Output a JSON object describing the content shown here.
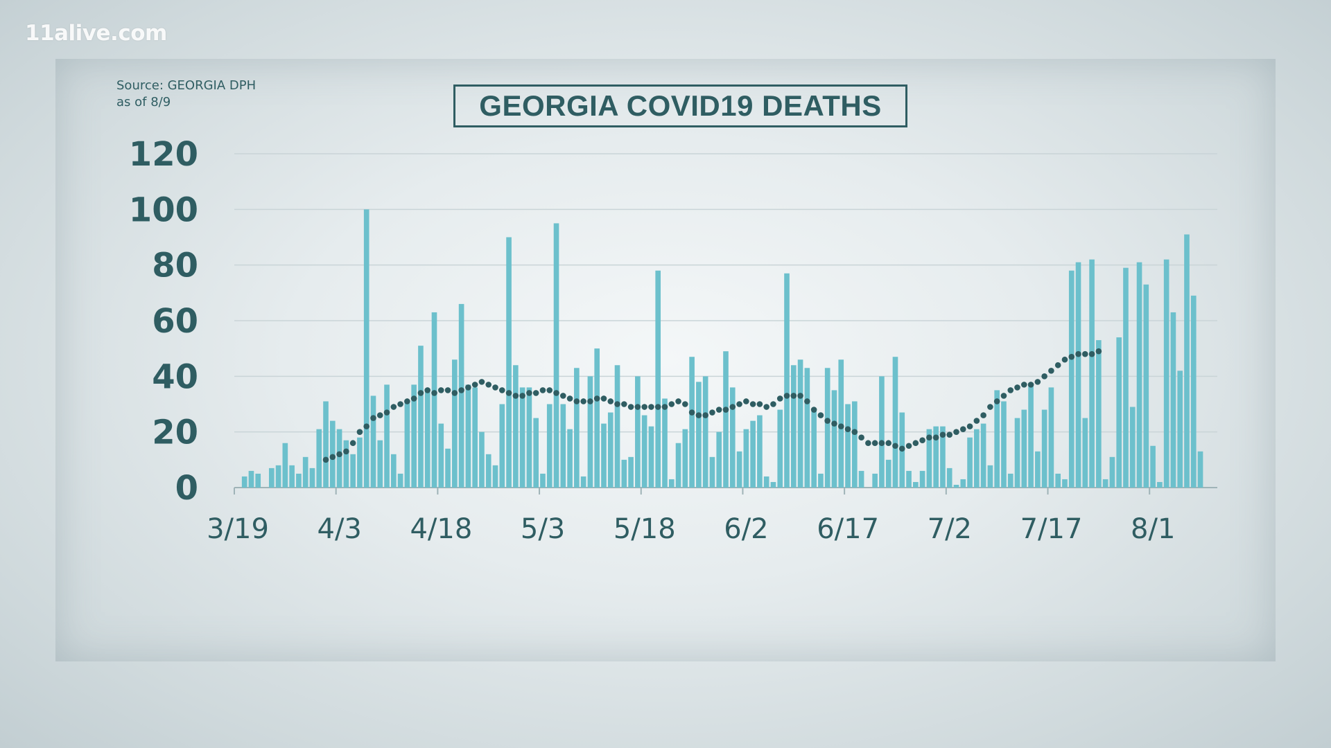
{
  "branding": {
    "logo": "11alive.com"
  },
  "source": {
    "line1": "Source: GEORGIA DPH",
    "line2": "as of 8/9"
  },
  "colors": {
    "bar": "#6cc0cc",
    "axis_text": "#2f5d62",
    "dots": "#2f5d62",
    "grid": "#c9d4d7"
  },
  "chart_data": {
    "type": "bar",
    "title": "GEORGIA COVID19 DEATHS",
    "xlabel": "",
    "ylabel": "",
    "ylim": [
      0,
      120
    ],
    "yticks": [
      0,
      20,
      40,
      60,
      80,
      100,
      120
    ],
    "x_tick_labels": [
      "3/19",
      "4/3",
      "4/18",
      "5/3",
      "5/18",
      "6/2",
      "6/17",
      "7/2",
      "7/17",
      "8/1"
    ],
    "x_tick_days": [
      0,
      15,
      30,
      45,
      60,
      75,
      90,
      105,
      120,
      135
    ],
    "days": 145,
    "grid": true,
    "series": [
      {
        "type": "bar",
        "values": [
          0,
          4,
          6,
          5,
          0,
          7,
          8,
          16,
          8,
          5,
          11,
          7,
          21,
          31,
          24,
          21,
          17,
          12,
          18,
          100,
          33,
          17,
          37,
          12,
          5,
          31,
          37,
          51,
          35,
          63,
          23,
          14,
          46,
          66,
          37,
          36,
          20,
          12,
          8,
          30,
          90,
          44,
          36,
          36,
          25,
          5,
          30,
          95,
          30,
          21,
          43,
          4,
          40,
          50,
          23,
          27,
          44,
          10,
          11,
          40,
          26,
          22,
          78,
          32,
          3,
          16,
          21,
          47,
          38,
          40,
          11,
          20,
          49,
          36,
          13,
          21,
          24,
          26,
          4,
          2,
          28,
          77,
          44,
          46,
          43,
          28,
          5,
          43,
          35,
          46,
          30,
          31,
          6,
          0,
          5,
          40,
          10,
          47,
          27,
          6,
          2,
          6,
          21,
          22,
          22,
          7,
          1,
          3,
          18,
          21,
          23,
          8,
          35,
          31,
          5,
          25,
          28,
          37,
          13,
          28,
          36,
          5,
          3,
          78,
          81,
          25,
          82,
          53,
          3,
          11,
          54,
          79,
          29,
          81,
          73,
          15,
          2,
          82,
          63,
          42,
          91,
          69,
          13
        ]
      },
      {
        "type": "dotted-line",
        "start_day": 13,
        "values": [
          10,
          11,
          12,
          13,
          16,
          20,
          22,
          25,
          26,
          27,
          29,
          30,
          31,
          32,
          34,
          35,
          34,
          35,
          35,
          34,
          35,
          36,
          37,
          38,
          37,
          36,
          35,
          34,
          33,
          33,
          34,
          34,
          35,
          35,
          34,
          33,
          32,
          31,
          31,
          31,
          32,
          32,
          31,
          30,
          30,
          29,
          29,
          29,
          29,
          29,
          29,
          30,
          31,
          30,
          27,
          26,
          26,
          27,
          28,
          28,
          29,
          30,
          31,
          30,
          30,
          29,
          30,
          32,
          33,
          33,
          33,
          31,
          28,
          26,
          24,
          23,
          22,
          21,
          20,
          18,
          16,
          16,
          16,
          16,
          15,
          14,
          15,
          16,
          17,
          18,
          18,
          19,
          19,
          20,
          21,
          22,
          24,
          26,
          29,
          31,
          33,
          35,
          36,
          37,
          37,
          38,
          40,
          42,
          44,
          46,
          47,
          48,
          48,
          48,
          49
        ]
      }
    ]
  }
}
